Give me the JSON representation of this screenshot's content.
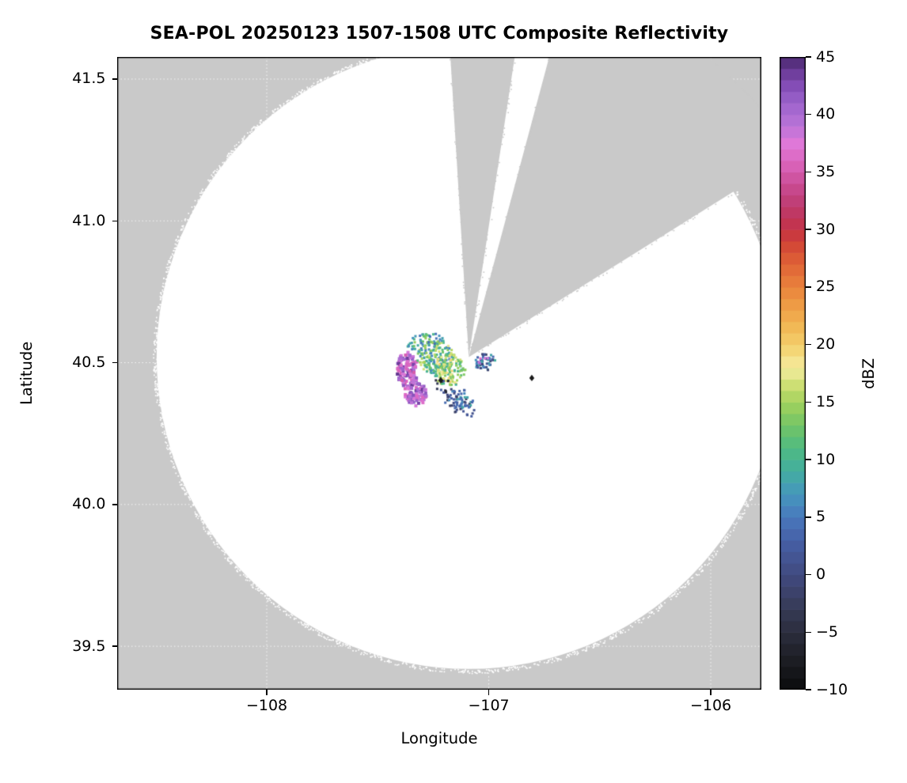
{
  "chart_data": {
    "type": "heatmap",
    "title": "SEA-POL 20250123 1507-1508 UTC Composite Reflectivity",
    "xlabel": "Longitude",
    "ylabel": "Latitude",
    "xlim": [
      -108.674,
      -105.772
    ],
    "ylim": [
      39.347,
      41.578
    ],
    "grid": {
      "show": true,
      "color": "#ffffff",
      "style": "dotted"
    },
    "outside_color": "#c9c9c9",
    "xticks": {
      "values": [
        -108,
        -107,
        -106
      ],
      "labels": [
        "−108",
        "−107",
        "−106"
      ]
    },
    "yticks": {
      "values": [
        39.5,
        40.0,
        40.5,
        41.0,
        41.5
      ],
      "labels": [
        "39.5",
        "40.0",
        "40.5",
        "41.0",
        "41.5"
      ]
    },
    "coverage": {
      "center": [
        -107.09,
        40.52
      ],
      "radius_deg_lat": 1.1,
      "color": "#ffffff",
      "missing_sectors_az": [
        [
          -3.5,
          8.7
        ],
        [
          15,
          58
        ]
      ]
    },
    "colorbar": {
      "label": "dBZ",
      "min": -10,
      "max": 45,
      "bin_size": 1,
      "tick_values": [
        -10,
        -5,
        0,
        5,
        10,
        15,
        20,
        25,
        30,
        35,
        40,
        45
      ],
      "tick_labels": [
        "−10",
        "−5",
        "0",
        "5",
        "10",
        "15",
        "20",
        "25",
        "30",
        "35",
        "40",
        "45"
      ],
      "stops": [
        [
          -10,
          "#0b0b0d"
        ],
        [
          -7,
          "#1f2027"
        ],
        [
          -5,
          "#2b2d3d"
        ],
        [
          -3,
          "#363a55"
        ],
        [
          0,
          "#414a80"
        ],
        [
          3,
          "#4660a6"
        ],
        [
          5,
          "#4978bd"
        ],
        [
          7,
          "#4596bd"
        ],
        [
          9,
          "#43ae9f"
        ],
        [
          11,
          "#4fba82"
        ],
        [
          13,
          "#73c566"
        ],
        [
          15,
          "#a3d25c"
        ],
        [
          17,
          "#dbe37c"
        ],
        [
          18,
          "#f4eda5"
        ],
        [
          19,
          "#f5dd7f"
        ],
        [
          21,
          "#f2c05b"
        ],
        [
          23,
          "#efa348"
        ],
        [
          25,
          "#e9833c"
        ],
        [
          27,
          "#e06336"
        ],
        [
          29,
          "#d04136"
        ],
        [
          30,
          "#c43246"
        ],
        [
          32,
          "#bd3a6e"
        ],
        [
          34,
          "#ca4d96"
        ],
        [
          36,
          "#dc67c0"
        ],
        [
          37.5,
          "#df78d8"
        ],
        [
          39,
          "#bb74d8"
        ],
        [
          41,
          "#9c63cc"
        ],
        [
          43,
          "#7c46ae"
        ],
        [
          44.5,
          "#57307f"
        ],
        [
          45,
          "#3f2057"
        ]
      ]
    },
    "echo_regions": [
      {
        "name": "west-purple-strip",
        "lon": -107.366,
        "lat": 40.471,
        "rx": 0.048,
        "ry": 0.068,
        "dbz": [
          35,
          44
        ],
        "fill": 0.85,
        "dot": 4,
        "seed": 11
      },
      {
        "name": "southwest-purple-blob",
        "lon": -107.327,
        "lat": 40.393,
        "rx": 0.052,
        "ry": 0.046,
        "dbz": [
          36,
          44
        ],
        "fill": 0.8,
        "dot": 4,
        "seed": 12
      },
      {
        "name": "core-green",
        "lon": -107.241,
        "lat": 40.519,
        "rx": 0.086,
        "ry": 0.057,
        "dbz": [
          5,
          18
        ],
        "fill": 0.75,
        "dot": 3,
        "seed": 13
      },
      {
        "name": "core-yellow",
        "lon": -107.177,
        "lat": 40.474,
        "rx": 0.072,
        "ry": 0.057,
        "dbz": [
          9,
          20
        ],
        "fill": 0.7,
        "dot": 3,
        "seed": 14
      },
      {
        "name": "north-teal-arc",
        "lon": -107.273,
        "lat": 40.58,
        "rx": 0.072,
        "ry": 0.026,
        "dbz": [
          4,
          15
        ],
        "fill": 0.55,
        "dot": 3,
        "seed": 15
      },
      {
        "name": "east-blue-blob",
        "lon": -107.016,
        "lat": 40.502,
        "rx": 0.054,
        "ry": 0.029,
        "dbz": [
          -2,
          9
        ],
        "fill": 0.7,
        "dot": 3,
        "seed": 16
      },
      {
        "name": "east-lavender-specks",
        "lon": -107.02,
        "lat": 40.507,
        "rx": 0.04,
        "ry": 0.02,
        "dbz": [
          36,
          41
        ],
        "fill": 0.15,
        "dot": 3,
        "seed": 21
      },
      {
        "name": "south-blue-blob",
        "lon": -107.134,
        "lat": 40.365,
        "rx": 0.065,
        "ry": 0.043,
        "dbz": [
          -3,
          9
        ],
        "fill": 0.55,
        "dot": 3,
        "seed": 17
      },
      {
        "name": "central-dark-specks",
        "lon": -107.205,
        "lat": 40.421,
        "rx": 0.044,
        "ry": 0.029,
        "dbz": [
          -9,
          3
        ],
        "fill": 0.22,
        "dot": 3,
        "seed": 18
      },
      {
        "name": "northwest-specks",
        "lon": -107.348,
        "lat": 40.552,
        "rx": 0.03,
        "ry": 0.018,
        "dbz": [
          5,
          13
        ],
        "fill": 0.4,
        "dot": 3,
        "seed": 19
      },
      {
        "name": "south-scattered-specks",
        "lon": -107.09,
        "lat": 40.33,
        "rx": 0.05,
        "ry": 0.02,
        "dbz": [
          0,
          8
        ],
        "fill": 0.15,
        "dot": 3,
        "seed": 20
      }
    ],
    "markers": [
      {
        "name": "site-marker-east",
        "lon": -106.806,
        "lat": 40.446,
        "shape": "diamond",
        "color": "#1a1a1a"
      },
      {
        "name": "site-marker-central",
        "lon": -107.216,
        "lat": 40.438,
        "shape": "diamond",
        "color": "#1a1a1a"
      }
    ]
  }
}
